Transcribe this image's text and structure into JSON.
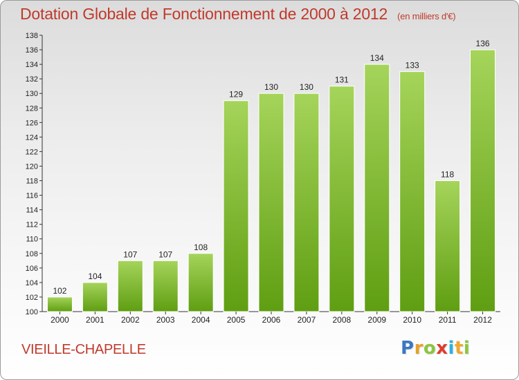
{
  "title": "Dotation Globale de Fonctionnement de 2000 à 2012",
  "subtitle": "(en milliers d'€)",
  "place": "VIEILLE-CHAPELLE",
  "logo": {
    "letters": [
      "P",
      "r",
      "o",
      "x",
      "i",
      "t",
      "i"
    ],
    "colors": [
      "#3b78c3",
      "#e8a02a",
      "#8cc63f",
      "#e23a2e",
      "#2bb3e0",
      "#f0a82f",
      "#8cc63f"
    ]
  },
  "colors": {
    "title": "#c0392b",
    "bar_top": "#a5d45a",
    "bar_bottom": "#5f9e12",
    "axis": "#333333"
  },
  "chart_data": {
    "type": "bar",
    "categories": [
      "2000",
      "2001",
      "2002",
      "2003",
      "2004",
      "2005",
      "2006",
      "2007",
      "2008",
      "2009",
      "2010",
      "2011",
      "2012"
    ],
    "values": [
      102,
      104,
      107,
      107,
      108,
      129,
      130,
      130,
      131,
      134,
      133,
      118,
      136
    ],
    "ylim": [
      100,
      138
    ],
    "yticks": [
      100,
      102,
      104,
      106,
      108,
      110,
      112,
      114,
      116,
      118,
      120,
      122,
      124,
      126,
      128,
      130,
      132,
      134,
      136,
      138
    ],
    "grid": false,
    "data_labels": true
  }
}
